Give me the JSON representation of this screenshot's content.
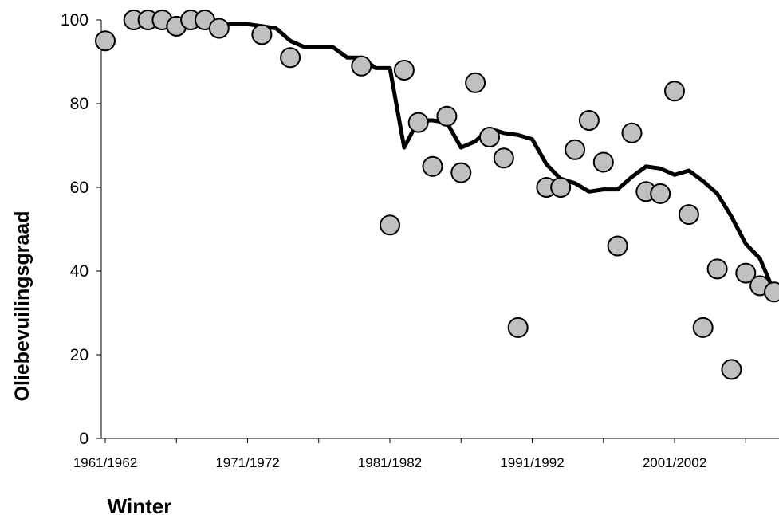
{
  "chart_data": {
    "type": "scatter",
    "xlabel": "Winter",
    "ylabel": "Oliebevuilingsgraad",
    "ylim": [
      0,
      100
    ],
    "yticks": [
      "0",
      "20",
      "40",
      "60",
      "80",
      "100"
    ],
    "xticks": [
      "1961/1962",
      "1971/1972",
      "1981/1982",
      "1991/1992",
      "2001/2002"
    ],
    "x_start_year": 1961,
    "grid": false,
    "legend": "none",
    "series": [
      {
        "kind": "scatter",
        "color": "#c0c0c0",
        "x": [
          "1961/1962",
          "1963/1964",
          "1964/1965",
          "1965/1966",
          "1966/1967",
          "1967/1968",
          "1968/1969",
          "1969/1970",
          "1972/1973",
          "1974/1975",
          "1979/1980",
          "1981/1982",
          "1982/1983",
          "1983/1984",
          "1984/1985",
          "1985/1986",
          "1986/1987",
          "1987/1988",
          "1988/1989",
          "1989/1990",
          "1990/1991",
          "1992/1993",
          "1993/1994",
          "1994/1995",
          "1995/1996",
          "1996/1997",
          "1997/1998",
          "1998/1999",
          "1999/2000",
          "2000/2001",
          "2001/2002",
          "2002/2003",
          "2003/2004",
          "2004/2005",
          "2005/2006",
          "2006/2007",
          "2007/2008",
          "2008/2009"
        ],
        "y": [
          95,
          100,
          100,
          100,
          98.5,
          100,
          100,
          98,
          96.5,
          91,
          89,
          51,
          88,
          75.5,
          65,
          77,
          63.5,
          85,
          72,
          67,
          26.5,
          60,
          60,
          69,
          76,
          66,
          46,
          73,
          59,
          58.5,
          83,
          53.5,
          26.5,
          40.5,
          16.5,
          39.5,
          36.5,
          35
        ]
      },
      {
        "kind": "line",
        "color": "#000000",
        "x": [
          "1966/1967",
          "1967/1968",
          "1968/1969",
          "1969/1970",
          "1970/1971",
          "1971/1972",
          "1972/1973",
          "1973/1974",
          "1974/1975",
          "1975/1976",
          "1976/1977",
          "1977/1978",
          "1978/1979",
          "1979/1980",
          "1980/1981",
          "1981/1982",
          "1982/1983",
          "1983/1984",
          "1984/1985",
          "1985/1986",
          "1986/1987",
          "1987/1988",
          "1988/1989",
          "1989/1990",
          "1990/1991",
          "1991/1992",
          "1992/1993",
          "1993/1994",
          "1994/1995",
          "1995/1996",
          "1996/1997",
          "1997/1998",
          "1998/1999",
          "1999/2000",
          "2000/2001",
          "2001/2002",
          "2002/2003",
          "2003/2004",
          "2004/2005",
          "2005/2006",
          "2006/2007",
          "2007/2008",
          "2008/2009"
        ],
        "y": [
          98.5,
          99.5,
          99.5,
          99,
          99,
          99,
          98.5,
          98,
          95,
          93.5,
          93.5,
          93.5,
          91,
          91,
          88.5,
          88.5,
          69.5,
          76,
          76,
          75.5,
          69.5,
          71,
          74,
          73,
          72.5,
          71.5,
          65.5,
          62,
          61,
          59,
          59.5,
          59.5,
          62.5,
          65,
          64.5,
          63,
          64,
          61.5,
          58.5,
          53,
          46.5,
          43,
          35
        ]
      }
    ]
  }
}
